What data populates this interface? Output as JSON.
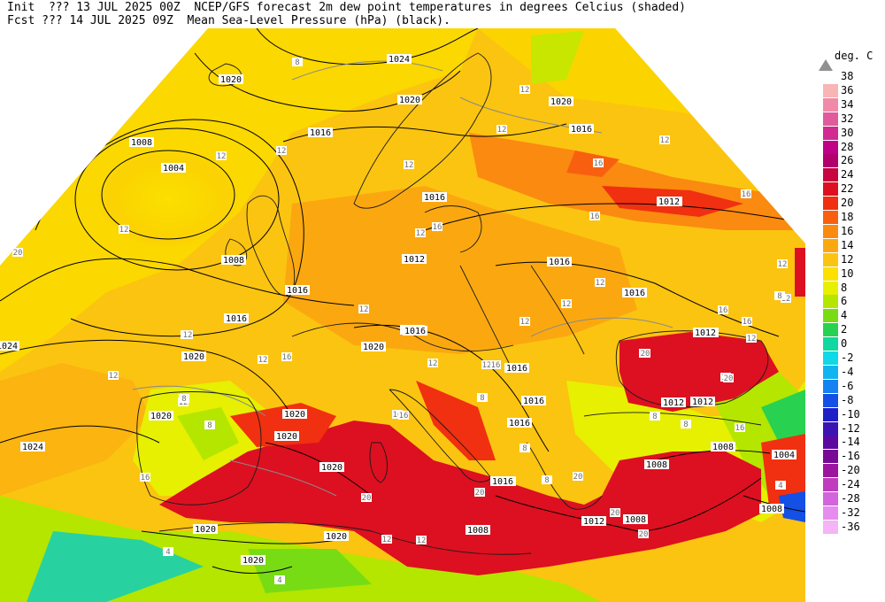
{
  "header": {
    "line1": "Init  ??? 13 JUL 2025 00Z  NCEP/GFS forecast 2m dew point temperatures in degrees Celcius (shaded)",
    "line2": "Fcst ??? 14 JUL 2025 09Z  Mean Sea-Level Pressure (hPa) (black)."
  },
  "legend": {
    "unit": "deg. C",
    "entries": [
      {
        "label": "38",
        "color": "#bfbfbf"
      },
      {
        "label": "36",
        "color": "#f7b5b5"
      },
      {
        "label": "34",
        "color": "#f08aa6"
      },
      {
        "label": "32",
        "color": "#e05a9c"
      },
      {
        "label": "30",
        "color": "#d12a91"
      },
      {
        "label": "28",
        "color": "#c00087"
      },
      {
        "label": "26",
        "color": "#b2006c"
      },
      {
        "label": "24",
        "color": "#c80640"
      },
      {
        "label": "22",
        "color": "#dc1020"
      },
      {
        "label": "20",
        "color": "#f03010"
      },
      {
        "label": "18",
        "color": "#f86010"
      },
      {
        "label": "16",
        "color": "#fb8a10"
      },
      {
        "label": "14",
        "color": "#fba810"
      },
      {
        "label": "12",
        "color": "#fbc410"
      },
      {
        "label": "10",
        "color": "#fbe000"
      },
      {
        "label": "8",
        "color": "#e6f000"
      },
      {
        "label": "6",
        "color": "#b4e600"
      },
      {
        "label": "4",
        "color": "#78dc14"
      },
      {
        "label": "2",
        "color": "#28d250"
      },
      {
        "label": "0",
        "color": "#10d8a0"
      },
      {
        "label": "-2",
        "color": "#10d8e6"
      },
      {
        "label": "-4",
        "color": "#10b4f0"
      },
      {
        "label": "-6",
        "color": "#1482f0"
      },
      {
        "label": "-8",
        "color": "#1450e6"
      },
      {
        "label": "-10",
        "color": "#2020c8"
      },
      {
        "label": "-12",
        "color": "#3c14b4"
      },
      {
        "label": "-14",
        "color": "#5a0aa0"
      },
      {
        "label": "-16",
        "color": "#780a96"
      },
      {
        "label": "-20",
        "color": "#9c14a0"
      },
      {
        "label": "-24",
        "color": "#c03cbe"
      },
      {
        "label": "-28",
        "color": "#d264dc"
      },
      {
        "label": "-32",
        "color": "#e68cf0"
      },
      {
        "label": "-36",
        "color": "#f5b4f5"
      }
    ]
  },
  "map": {
    "pressure_labels": [
      "1024",
      "1020",
      "1020",
      "1020",
      "1016",
      "1016",
      "1008",
      "1004",
      "1016",
      "1008",
      "1012",
      "1016",
      "1024",
      "1020",
      "1016",
      "1012",
      "1020",
      "1016",
      "1016",
      "1016",
      "1020",
      "1016",
      "1012",
      "1020",
      "1020",
      "1016",
      "1020",
      "1020",
      "1016",
      "1012",
      "1008",
      "1008",
      "1004",
      "1008",
      "1024",
      "1020",
      "1020",
      "1016",
      "1012",
      "1008",
      "1008",
      "1012",
      "1016",
      "1016",
      "1012",
      "1012",
      "1016"
    ],
    "dewpoint_labels": [
      "8",
      "12",
      "12",
      "12",
      "12",
      "12",
      "12",
      "16",
      "12",
      "16",
      "16",
      "16",
      "12",
      "12",
      "12",
      "12",
      "12",
      "12",
      "12",
      "12",
      "12",
      "16",
      "16",
      "16",
      "12",
      "16",
      "16",
      "12",
      "20",
      "16",
      "8",
      "8",
      "12",
      "20",
      "8",
      "20",
      "20",
      "20",
      "16",
      "16",
      "20",
      "20",
      "12",
      "8",
      "8",
      "4",
      "4",
      "4",
      "12",
      "12",
      "16",
      "8",
      "8",
      "12",
      "8",
      "20",
      "16",
      "12"
    ],
    "colors": {
      "sea_warm": "#dc1020",
      "land_base": "#fbc410",
      "orange": "#fba810",
      "pressure_line": "#000000",
      "coast_line": "#222222"
    }
  }
}
